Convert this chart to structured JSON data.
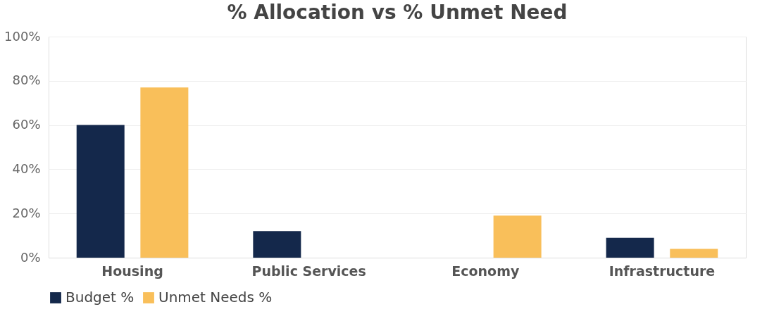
{
  "chart_data": {
    "type": "bar",
    "title": "% Allocation vs % Unmet Need",
    "categories": [
      "Housing",
      "Public Services",
      "Economy",
      "Infrastructure"
    ],
    "series": [
      {
        "name": "Budget %",
        "color": "#14284b",
        "values": [
          60,
          12,
          0,
          9
        ]
      },
      {
        "name": "Unmet Needs %",
        "color": "#f9bf5a",
        "values": [
          77,
          0,
          19,
          4
        ]
      }
    ],
    "ylim": [
      0,
      100
    ],
    "yticks": [
      {
        "value": 0,
        "label": "0%"
      },
      {
        "value": 20,
        "label": "20%"
      },
      {
        "value": 40,
        "label": "40%"
      },
      {
        "value": 60,
        "label": "60%"
      },
      {
        "value": 80,
        "label": "80%"
      },
      {
        "value": 100,
        "label": "100%"
      }
    ],
    "grid": "y",
    "legend": "bottom"
  }
}
